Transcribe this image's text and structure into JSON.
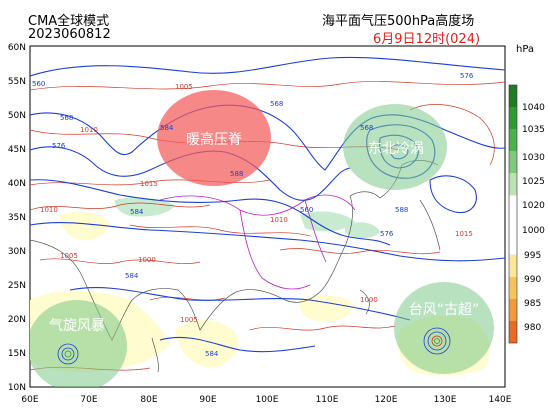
{
  "header": {
    "model": "CMA全球模式",
    "init_time": "2023060812",
    "title": "海平面气压500hPa高度场",
    "valid_time": "6月9日12时(024)"
  },
  "legend": {
    "unit": "hPa",
    "levels": [
      "1040",
      "1035",
      "1030",
      "1025",
      "1020",
      "1000",
      "995",
      "990",
      "985",
      "980"
    ],
    "colors": {
      "1040": "#1e7d24",
      "1035": "#2f9b33",
      "1030": "#4cb04c",
      "1025": "#7fc97a",
      "1020": "#b9e3b0",
      "1000": "#fffccf",
      "995": "#fbe69a",
      "990": "#f6c25c",
      "985": "#f29a3a",
      "980": "#ea6a23"
    }
  },
  "axes": {
    "lat_labels": [
      "60N",
      "55N",
      "50N",
      "45N",
      "40N",
      "35N",
      "30N",
      "25N",
      "20N",
      "15N",
      "10N"
    ],
    "lon_labels": [
      "60E",
      "70E",
      "80E",
      "90E",
      "100E",
      "110E",
      "120E",
      "130E",
      "140E"
    ]
  },
  "systems": {
    "ridge": "暖高压脊",
    "cold_vortex": "东北冷涡",
    "cyclone": "气旋风暴",
    "typhoon": "台风“古超”"
  },
  "contour_labels": {
    "blue": [
      "560",
      "568",
      "576",
      "584",
      "588",
      "560",
      "568",
      "576",
      "584",
      "588",
      "584",
      "576",
      "568",
      "584"
    ],
    "red": [
      "1005",
      "1010",
      "1015",
      "1010",
      "1005",
      "1000",
      "1010",
      "1015",
      "1005",
      "1000"
    ]
  },
  "colors": {
    "height_contour": "#1b3fd6",
    "pressure_contour": "#d23a2a",
    "warm_ridge": "#f25a5a",
    "circulation": "#7cc98a"
  }
}
